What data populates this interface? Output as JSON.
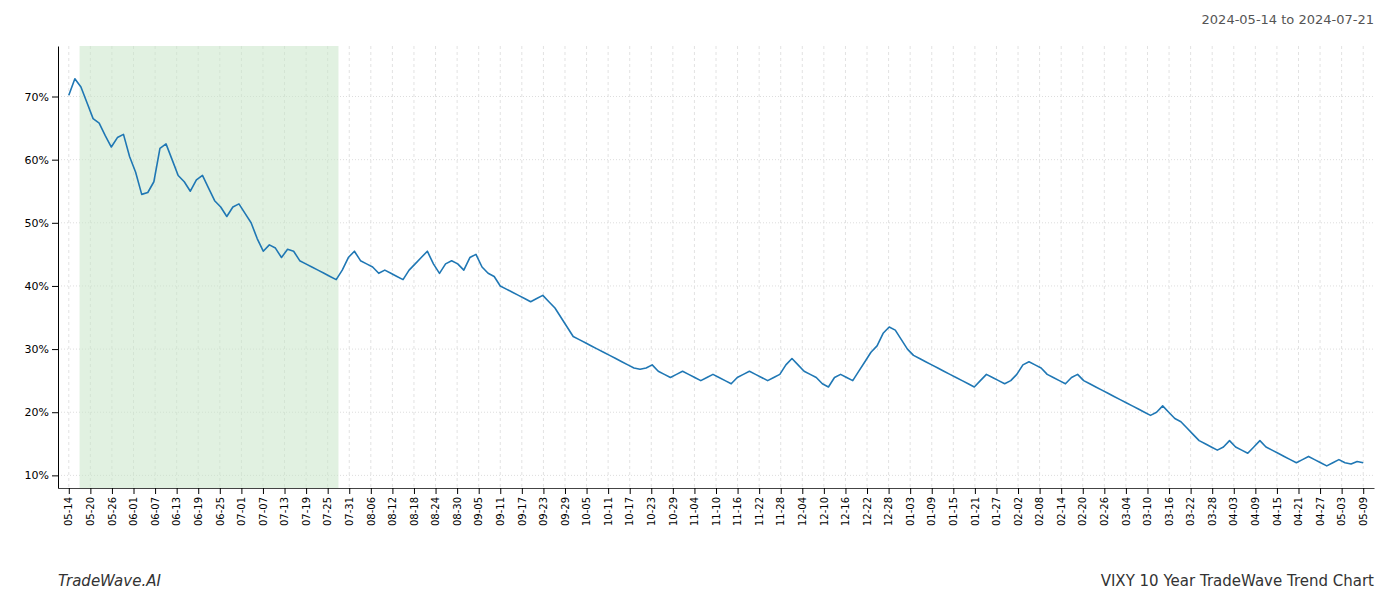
{
  "chart_data": {
    "type": "line",
    "title": "VIXY 10 Year TradeWave Trend Chart",
    "subtitle": "2024-05-14 to 2024-07-21",
    "annotations": [
      "TradeWave.AI"
    ],
    "grid": true,
    "highlight": {
      "start": 0.5,
      "end": 12.5,
      "color": "#c8e6c9"
    },
    "xlim": [
      -0.5,
      60.5
    ],
    "xticks": [
      {
        "value": 0,
        "label": "05-14"
      },
      {
        "value": 1,
        "label": "05-20"
      },
      {
        "value": 2,
        "label": "05-26"
      },
      {
        "value": 3,
        "label": "06-01"
      },
      {
        "value": 4,
        "label": "06-07"
      },
      {
        "value": 5,
        "label": "06-13"
      },
      {
        "value": 6,
        "label": "06-19"
      },
      {
        "value": 7,
        "label": "06-25"
      },
      {
        "value": 8,
        "label": "07-01"
      },
      {
        "value": 9,
        "label": "07-07"
      },
      {
        "value": 10,
        "label": "07-13"
      },
      {
        "value": 11,
        "label": "07-19"
      },
      {
        "value": 12,
        "label": "07-25"
      },
      {
        "value": 13,
        "label": "07-31"
      },
      {
        "value": 14,
        "label": "08-06"
      },
      {
        "value": 15,
        "label": "08-12"
      },
      {
        "value": 16,
        "label": "08-18"
      },
      {
        "value": 17,
        "label": "08-24"
      },
      {
        "value": 18,
        "label": "08-30"
      },
      {
        "value": 19,
        "label": "09-05"
      },
      {
        "value": 20,
        "label": "09-11"
      },
      {
        "value": 21,
        "label": "09-17"
      },
      {
        "value": 22,
        "label": "09-23"
      },
      {
        "value": 23,
        "label": "09-29"
      },
      {
        "value": 24,
        "label": "10-05"
      },
      {
        "value": 25,
        "label": "10-11"
      },
      {
        "value": 26,
        "label": "10-17"
      },
      {
        "value": 27,
        "label": "10-23"
      },
      {
        "value": 28,
        "label": "10-29"
      },
      {
        "value": 29,
        "label": "11-04"
      },
      {
        "value": 30,
        "label": "11-10"
      },
      {
        "value": 31,
        "label": "11-16"
      },
      {
        "value": 32,
        "label": "11-22"
      },
      {
        "value": 33,
        "label": "11-28"
      },
      {
        "value": 34,
        "label": "12-04"
      },
      {
        "value": 35,
        "label": "12-10"
      },
      {
        "value": 36,
        "label": "12-16"
      },
      {
        "value": 37,
        "label": "12-22"
      },
      {
        "value": 38,
        "label": "12-28"
      },
      {
        "value": 39,
        "label": "01-03"
      },
      {
        "value": 40,
        "label": "01-09"
      },
      {
        "value": 41,
        "label": "01-15"
      },
      {
        "value": 42,
        "label": "01-21"
      },
      {
        "value": 43,
        "label": "01-27"
      },
      {
        "value": 44,
        "label": "02-02"
      },
      {
        "value": 45,
        "label": "02-08"
      },
      {
        "value": 46,
        "label": "02-14"
      },
      {
        "value": 47,
        "label": "02-20"
      },
      {
        "value": 48,
        "label": "02-26"
      },
      {
        "value": 49,
        "label": "03-04"
      },
      {
        "value": 50,
        "label": "03-10"
      },
      {
        "value": 51,
        "label": "03-16"
      },
      {
        "value": 52,
        "label": "03-22"
      },
      {
        "value": 53,
        "label": "03-28"
      },
      {
        "value": 54,
        "label": "04-03"
      },
      {
        "value": 55,
        "label": "04-09"
      },
      {
        "value": 56,
        "label": "04-15"
      },
      {
        "value": 57,
        "label": "04-21"
      },
      {
        "value": 58,
        "label": "04-27"
      },
      {
        "value": 59,
        "label": "05-03"
      },
      {
        "value": 60,
        "label": "05-09"
      }
    ],
    "ylim": [
      8,
      78
    ],
    "yticks": [
      {
        "value": 10,
        "label": "10%"
      },
      {
        "value": 20,
        "label": "20%"
      },
      {
        "value": 30,
        "label": "30%"
      },
      {
        "value": 40,
        "label": "40%"
      },
      {
        "value": 50,
        "label": "50%"
      },
      {
        "value": 60,
        "label": "60%"
      },
      {
        "value": 70,
        "label": "70%"
      }
    ],
    "x": [
      0,
      0.2817,
      0.5634,
      0.8451,
      1.1268,
      1.4085,
      1.6901,
      1.9718,
      2.2535,
      2.5352,
      2.8169,
      3.0986,
      3.3803,
      3.662,
      3.9437,
      4.2254,
      4.507,
      4.7887,
      5.0704,
      5.3521,
      5.6338,
      5.9155,
      6.1972,
      6.4789,
      6.7606,
      7.0423,
      7.3239,
      7.6056,
      7.8873,
      8.169,
      8.4507,
      8.7324,
      9.0141,
      9.2958,
      9.5775,
      9.8592,
      10.1408,
      10.4225,
      10.7042,
      10.9859,
      11.2676,
      11.5493,
      11.831,
      12.1127,
      12.3944,
      12.6761,
      12.9577,
      13.2394,
      13.5211,
      13.8028,
      14.0845,
      14.3662,
      14.6479,
      14.9296,
      15.2113,
      15.493,
      15.7746,
      16.0563,
      16.338,
      16.6197,
      16.9014,
      17.1831,
      17.4648,
      17.7465,
      18.0282,
      18.3099,
      18.5915,
      18.8732,
      19.1549,
      19.4366,
      19.7183,
      20,
      20.2817,
      20.5634,
      20.8451,
      21.1268,
      21.4085,
      21.6901,
      21.9718,
      22.2535,
      22.5352,
      22.8169,
      23.0986,
      23.3803,
      23.662,
      23.9437,
      24.2254,
      24.507,
      24.7887,
      25.0704,
      25.3521,
      25.6338,
      25.9155,
      26.1972,
      26.4789,
      26.7606,
      27.0423,
      27.3239,
      27.6056,
      27.8873,
      28.169,
      28.4507,
      28.7324,
      29.0141,
      29.2958,
      29.5775,
      29.8592,
      30.1408,
      30.4225,
      30.7042,
      30.9859,
      31.2676,
      31.5493,
      31.831,
      32.1127,
      32.3944,
      32.6761,
      32.9577,
      33.2394,
      33.5211,
      33.8028,
      34.0845,
      34.3662,
      34.6479,
      34.9296,
      35.2113,
      35.493,
      35.7746,
      36.0563,
      36.338,
      36.6197,
      36.9014,
      37.1831,
      37.4648,
      37.7465,
      38.0282,
      38.3099,
      38.5915,
      38.8732,
      39.1549,
      39.4366,
      39.7183,
      40,
      40.2817,
      40.5634,
      40.8451,
      41.1268,
      41.4085,
      41.6901,
      41.9718,
      42.2535,
      42.5352,
      42.8169,
      43.0986,
      43.3803,
      43.662,
      43.9437,
      44.2254,
      44.507,
      44.7887,
      45.0704,
      45.3521,
      45.6338,
      45.9155,
      46.1972,
      46.4789,
      46.7606,
      47.0423,
      47.3239,
      47.6056,
      47.8873,
      48.169,
      48.4507,
      48.7324,
      49.0141,
      49.2958,
      49.5775,
      49.8592,
      50.1408,
      50.4225,
      50.7042,
      50.9859,
      51.2676,
      51.5493,
      51.831,
      52.1127,
      52.3944,
      52.6761,
      52.9577,
      53.2394,
      53.5211,
      53.8028,
      54.0845,
      54.3662,
      54.6479,
      54.9296,
      55.2113,
      55.493,
      55.7746,
      56.0563,
      56.338,
      56.6197,
      56.9014,
      57.1831,
      57.4648,
      57.7465,
      58.0282,
      58.3099,
      58.5915,
      58.8732,
      59.1549,
      59.4366,
      59.7183,
      60
    ],
    "values": [
      70.2,
      72.8,
      71.5,
      69.0,
      66.5,
      65.8,
      63.8,
      62.0,
      63.5,
      64.0,
      60.5,
      58.0,
      54.5,
      54.8,
      56.5,
      61.8,
      62.5,
      60.0,
      57.5,
      56.5,
      55.0,
      56.8,
      57.5,
      55.5,
      53.5,
      52.5,
      51.0,
      52.5,
      53.0,
      51.5,
      50.0,
      47.5,
      45.5,
      46.5,
      46.0,
      44.5,
      45.8,
      45.5,
      44.0,
      43.5,
      43.0,
      42.5,
      42.0,
      41.5,
      41.0,
      42.5,
      44.5,
      45.5,
      44.0,
      43.5,
      43.0,
      42.0,
      42.5,
      42.0,
      41.5,
      41.0,
      42.5,
      43.5,
      44.5,
      45.5,
      43.5,
      42.0,
      43.5,
      44.0,
      43.5,
      42.5,
      44.5,
      45.0,
      43.0,
      42.0,
      41.5,
      40.0,
      39.5,
      39.0,
      38.5,
      38.0,
      37.5,
      38.0,
      38.5,
      37.5,
      36.5,
      35.0,
      33.5,
      32.0,
      31.5,
      31.0,
      30.5,
      30.0,
      29.5,
      29.0,
      28.5,
      28.0,
      27.5,
      27.0,
      26.8,
      27.0,
      27.5,
      26.5,
      26.0,
      25.5,
      26.0,
      26.5,
      26.0,
      25.5,
      25.0,
      25.5,
      26.0,
      25.5,
      25.0,
      24.5,
      25.5,
      26.0,
      26.5,
      26.0,
      25.5,
      25.0,
      25.5,
      26.0,
      27.5,
      28.5,
      27.5,
      26.5,
      26.0,
      25.5,
      24.5,
      24.0,
      25.5,
      26.0,
      25.5,
      25.0,
      26.5,
      28.0,
      29.5,
      30.5,
      32.5,
      33.5,
      33.0,
      31.5,
      30.0,
      29.0,
      28.5,
      28.0,
      27.5,
      27.0,
      26.5,
      26.0,
      25.5,
      25.0,
      24.5,
      24.0,
      25.0,
      26.0,
      25.5,
      25.0,
      24.5,
      25.0,
      26.0,
      27.5,
      28.0,
      27.5,
      27.0,
      26.0,
      25.5,
      25.0,
      24.5,
      25.5,
      26.0,
      25.0,
      24.5,
      24.0,
      23.5,
      23.0,
      22.5,
      22.0,
      21.5,
      21.0,
      20.5,
      20.0,
      19.5,
      20.0,
      21.0,
      20.0,
      19.0,
      18.5,
      17.5,
      16.5,
      15.5,
      15.0,
      14.5,
      14.0,
      14.5,
      15.5,
      14.5,
      14.0,
      13.5,
      14.5,
      15.5,
      14.5,
      14.0,
      13.5,
      13.0,
      12.5,
      12.0,
      12.5,
      13.0,
      12.5,
      12.0,
      11.5,
      12.0,
      12.5,
      12.0,
      11.8,
      12.2,
      12.0
    ]
  }
}
